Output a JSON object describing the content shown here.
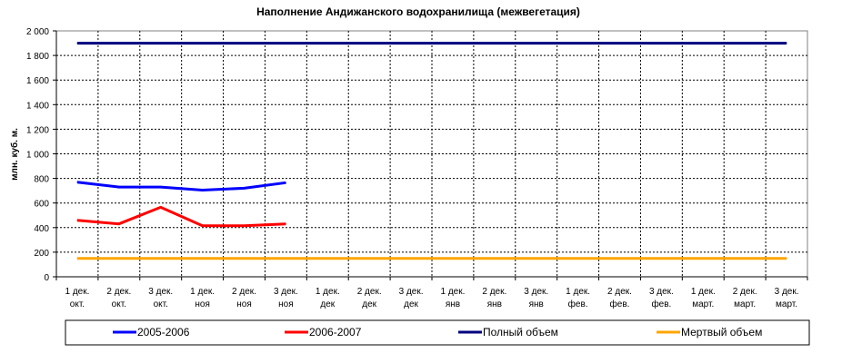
{
  "chart_data": {
    "type": "line",
    "title": "Наполнение Андижанского водохранилища (межвегетация)",
    "xlabel": "",
    "ylabel": "млн. куб. м.",
    "ylim": [
      0,
      2000
    ],
    "yticks": [
      0,
      200,
      400,
      600,
      800,
      1000,
      1200,
      1400,
      1600,
      1800,
      2000
    ],
    "ytick_labels": [
      "0",
      "200",
      "400",
      "600",
      "800",
      "1 000",
      "1 200",
      "1 400",
      "1 600",
      "1 800",
      "2 000"
    ],
    "categories": [
      [
        "1 дек.",
        "окт."
      ],
      [
        "2 дек.",
        "окт."
      ],
      [
        "3 дек.",
        "окт."
      ],
      [
        "1 дек.",
        "ноя"
      ],
      [
        "2 дек.",
        "ноя"
      ],
      [
        "3 дек.",
        "ноя"
      ],
      [
        "1 дек.",
        "дек"
      ],
      [
        "2 дек.",
        "дек"
      ],
      [
        "3 дек.",
        "дек"
      ],
      [
        "1 дек.",
        "янв"
      ],
      [
        "2 дек.",
        "янв"
      ],
      [
        "3 дек.",
        "янв"
      ],
      [
        "1 дек.",
        "фев."
      ],
      [
        "2 дек.",
        "фев."
      ],
      [
        "3 дек.",
        "фев."
      ],
      [
        "1 дек.",
        "март."
      ],
      [
        "2 дек.",
        "март."
      ],
      [
        "3 дек.",
        "март."
      ]
    ],
    "grid": true,
    "legend_position": "bottom",
    "series": [
      {
        "name": "2005-2006",
        "color": "#0000ff",
        "values": [
          770,
          730,
          730,
          705,
          720,
          765,
          null,
          null,
          null,
          null,
          null,
          null,
          null,
          null,
          null,
          null,
          null,
          null
        ]
      },
      {
        "name": "2006-2007",
        "color": "#ff0000",
        "values": [
          460,
          430,
          565,
          415,
          415,
          430,
          null,
          null,
          null,
          null,
          null,
          null,
          null,
          null,
          null,
          null,
          null,
          null
        ]
      },
      {
        "name": "Полный объем",
        "color": "#000080",
        "values": [
          1900,
          1900,
          1900,
          1900,
          1900,
          1900,
          1900,
          1900,
          1900,
          1900,
          1900,
          1900,
          1900,
          1900,
          1900,
          1900,
          1900,
          1900
        ]
      },
      {
        "name": "Мертвый объем",
        "color": "#ffa500",
        "values": [
          150,
          150,
          150,
          150,
          150,
          150,
          150,
          150,
          150,
          150,
          150,
          150,
          150,
          150,
          150,
          150,
          150,
          150
        ]
      }
    ]
  }
}
